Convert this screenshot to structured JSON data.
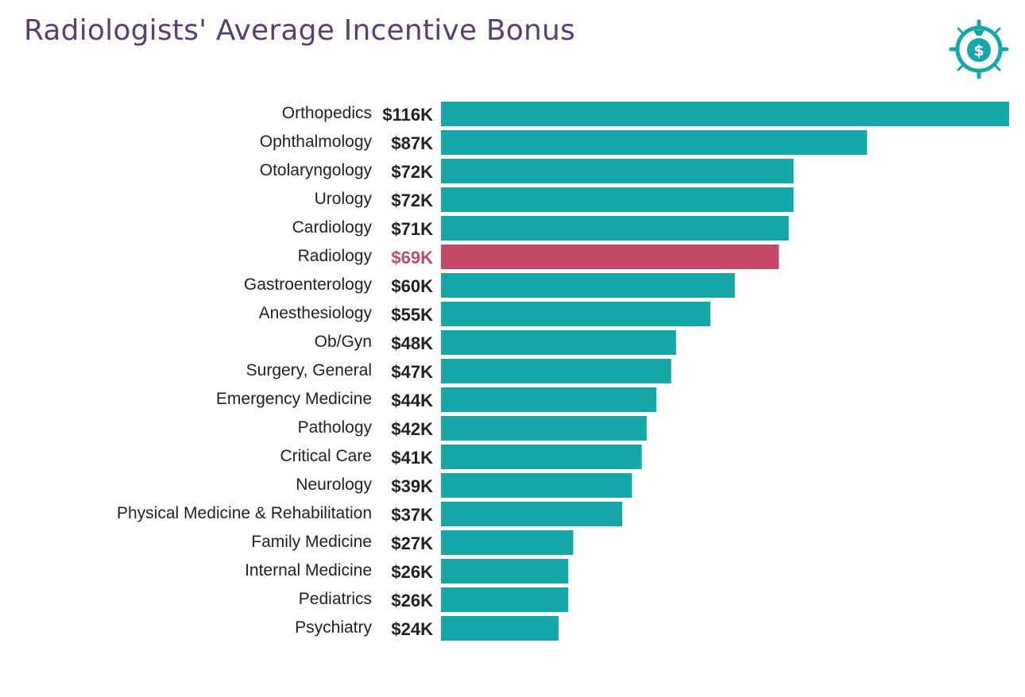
{
  "title": "Radiologists' Average Incentive Bonus",
  "logo": {
    "icon": "money-bag-target-icon",
    "color": "#16a8a8"
  },
  "colors": {
    "default_bar": "#16a8a8",
    "highlight_bar": "#c44b67",
    "highlight_text": "#c44b67",
    "text": "#222222",
    "title": "#5a3e74"
  },
  "chart_data": {
    "type": "bar",
    "orientation": "horizontal",
    "title": "Radiologists' Average Incentive Bonus",
    "xlabel": "",
    "ylabel": "",
    "unit": "$K",
    "xlim": [
      0,
      116
    ],
    "grid": false,
    "legend": "none",
    "highlight": "Radiology",
    "categories": [
      "Orthopedics",
      "Ophthalmology",
      "Otolaryngology",
      "Urology",
      "Cardiology",
      "Radiology",
      "Gastroenterology",
      "Anesthesiology",
      "Ob/Gyn",
      "Surgery, General",
      "Emergency Medicine",
      "Pathology",
      "Critical Care",
      "Neurology",
      "Physical Medicine & Rehabilitation",
      "Family Medicine",
      "Internal Medicine",
      "Pediatrics",
      "Psychiatry"
    ],
    "values": [
      116,
      87,
      72,
      72,
      71,
      69,
      60,
      55,
      48,
      47,
      44,
      42,
      41,
      39,
      37,
      27,
      26,
      26,
      24
    ],
    "value_labels": [
      "$116K",
      "$87K",
      "$72K",
      "$72K",
      "$71K",
      "$69K",
      "$60K",
      "$55K",
      "$48K",
      "$47K",
      "$44K",
      "$42K",
      "$41K",
      "$39K",
      "$37K",
      "$27K",
      "$26K",
      "$26K",
      "$24K"
    ]
  }
}
